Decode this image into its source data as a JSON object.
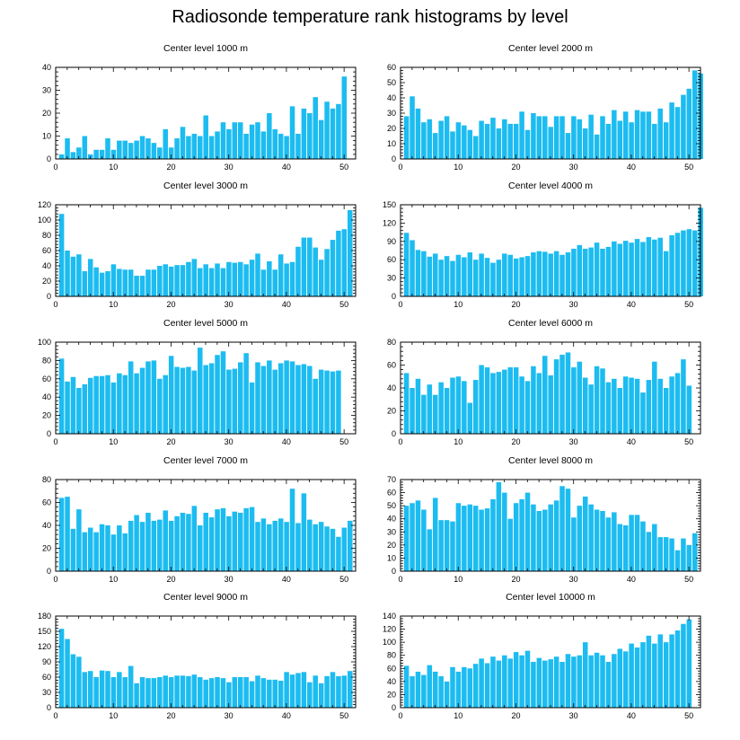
{
  "title": "Radiosonde temperature rank histograms by level",
  "colors": {
    "bar": "#1cbcf0",
    "axis": "#000000",
    "background": "#ffffff"
  },
  "chart_data": [
    {
      "type": "bar",
      "title": "Center level 1000 m",
      "xlim": [
        0,
        52
      ],
      "ylim": [
        0,
        40
      ],
      "xticks": [
        0,
        10,
        20,
        30,
        40,
        50
      ],
      "yticks": [
        0,
        10,
        20,
        30,
        40
      ],
      "values": [
        2,
        9,
        3,
        5,
        10,
        2,
        4,
        4,
        9,
        4,
        8,
        8,
        7,
        8,
        10,
        9,
        7,
        5,
        13,
        5,
        9,
        14,
        10,
        11,
        10,
        19,
        10,
        12,
        16,
        13,
        16,
        16,
        11,
        15,
        16,
        12,
        20,
        13,
        11,
        10,
        23,
        11,
        22,
        20,
        27,
        17,
        25,
        22,
        24,
        36
      ]
    },
    {
      "type": "bar",
      "title": "Center level 2000 m",
      "xlim": [
        0,
        52
      ],
      "ylim": [
        0,
        60
      ],
      "xticks": [
        0,
        10,
        20,
        30,
        40,
        50
      ],
      "yticks": [
        0,
        10,
        20,
        30,
        40,
        50,
        60
      ],
      "values": [
        28,
        41,
        33,
        24,
        26,
        17,
        25,
        28,
        18,
        24,
        22,
        19,
        15,
        25,
        23,
        27,
        20,
        26,
        23,
        23,
        31,
        19,
        30,
        28,
        28,
        21,
        28,
        28,
        17,
        28,
        26,
        20,
        29,
        16,
        28,
        23,
        32,
        25,
        31,
        24,
        32,
        31,
        31,
        23,
        33,
        24,
        37,
        34,
        42,
        46,
        58,
        56
      ]
    },
    {
      "type": "bar",
      "title": "Center level 3000 m",
      "xlim": [
        0,
        52
      ],
      "ylim": [
        0,
        120
      ],
      "xticks": [
        0,
        10,
        20,
        30,
        40,
        50
      ],
      "yticks": [
        0,
        20,
        40,
        60,
        80,
        100,
        120
      ],
      "values": [
        108,
        60,
        52,
        55,
        33,
        49,
        38,
        31,
        33,
        42,
        36,
        35,
        35,
        27,
        27,
        35,
        35,
        40,
        42,
        39,
        41,
        41,
        45,
        49,
        37,
        42,
        37,
        43,
        37,
        45,
        44,
        45,
        42,
        48,
        56,
        35,
        46,
        35,
        55,
        43,
        45,
        65,
        77,
        77,
        64,
        48,
        62,
        74,
        86,
        88,
        113
      ]
    },
    {
      "type": "bar",
      "title": "Center level 4000 m",
      "xlim": [
        0,
        52
      ],
      "ylim": [
        0,
        150
      ],
      "xticks": [
        0,
        10,
        20,
        30,
        40,
        50
      ],
      "yticks": [
        0,
        30,
        60,
        90,
        120,
        150
      ],
      "values": [
        104,
        92,
        76,
        74,
        65,
        70,
        60,
        66,
        58,
        68,
        64,
        72,
        60,
        70,
        63,
        55,
        60,
        70,
        68,
        62,
        64,
        66,
        72,
        74,
        73,
        70,
        74,
        68,
        72,
        78,
        84,
        78,
        80,
        88,
        78,
        81,
        90,
        86,
        91,
        88,
        94,
        89,
        97,
        93,
        96,
        74,
        100,
        104,
        108,
        110,
        108,
        145
      ]
    },
    {
      "type": "bar",
      "title": "Center level 5000 m",
      "xlim": [
        0,
        52
      ],
      "ylim": [
        0,
        100
      ],
      "xticks": [
        0,
        10,
        20,
        30,
        40,
        50
      ],
      "yticks": [
        0,
        20,
        40,
        60,
        80,
        100
      ],
      "values": [
        82,
        57,
        62,
        50,
        54,
        61,
        63,
        63,
        64,
        56,
        66,
        64,
        79,
        66,
        72,
        79,
        80,
        60,
        64,
        85,
        73,
        72,
        73,
        69,
        94,
        75,
        77,
        86,
        90,
        70,
        71,
        78,
        88,
        56,
        78,
        74,
        80,
        70,
        77,
        80,
        79,
        75,
        76,
        74,
        60,
        70,
        69,
        68,
        69
      ]
    },
    {
      "type": "bar",
      "title": "Center level 6000 m",
      "xlim": [
        0,
        52
      ],
      "ylim": [
        0,
        80
      ],
      "xticks": [
        0,
        10,
        20,
        30,
        40,
        50
      ],
      "yticks": [
        0,
        20,
        40,
        60,
        80
      ],
      "values": [
        53,
        40,
        48,
        34,
        43,
        34,
        45,
        40,
        49,
        50,
        46,
        27,
        47,
        60,
        58,
        53,
        54,
        56,
        58,
        58,
        50,
        46,
        59,
        53,
        68,
        51,
        65,
        69,
        71,
        58,
        63,
        49,
        43,
        59,
        57,
        45,
        48,
        40,
        50,
        49,
        48,
        36,
        47,
        63,
        48,
        40,
        50,
        53,
        65,
        42
      ]
    },
    {
      "type": "bar",
      "title": "Center level 7000 m",
      "xlim": [
        0,
        52
      ],
      "ylim": [
        0,
        80
      ],
      "xticks": [
        0,
        10,
        20,
        30,
        40,
        50
      ],
      "yticks": [
        0,
        20,
        40,
        60,
        80
      ],
      "values": [
        64,
        65,
        37,
        54,
        34,
        38,
        34,
        41,
        40,
        32,
        40,
        33,
        44,
        49,
        43,
        51,
        44,
        45,
        53,
        44,
        48,
        51,
        50,
        57,
        40,
        51,
        47,
        54,
        55,
        48,
        52,
        51,
        55,
        56,
        43,
        46,
        41,
        44,
        46,
        43,
        72,
        42,
        68,
        45,
        41,
        43,
        39,
        37,
        30,
        38,
        44
      ]
    },
    {
      "type": "bar",
      "title": "Center level 8000 m",
      "xlim": [
        0,
        52
      ],
      "ylim": [
        0,
        70
      ],
      "xticks": [
        0,
        10,
        20,
        30,
        40,
        50
      ],
      "yticks": [
        0,
        10,
        20,
        30,
        40,
        50,
        60,
        70
      ],
      "values": [
        50,
        52,
        54,
        47,
        32,
        56,
        39,
        39,
        38,
        52,
        50,
        51,
        50,
        47,
        48,
        55,
        68,
        60,
        40,
        52,
        55,
        60,
        51,
        46,
        47,
        51,
        54,
        65,
        63,
        41,
        50,
        57,
        51,
        47,
        46,
        41,
        45,
        36,
        35,
        43,
        43,
        38,
        30,
        36,
        26,
        26,
        25,
        16,
        25,
        20,
        29
      ]
    },
    {
      "type": "bar",
      "title": "Center level 9000 m",
      "xlim": [
        0,
        52
      ],
      "ylim": [
        0,
        180
      ],
      "xticks": [
        0,
        10,
        20,
        30,
        40,
        50
      ],
      "yticks": [
        0,
        30,
        60,
        90,
        120,
        150,
        180
      ],
      "values": [
        155,
        135,
        105,
        100,
        70,
        72,
        60,
        73,
        72,
        60,
        70,
        60,
        82,
        48,
        60,
        58,
        58,
        60,
        63,
        60,
        63,
        63,
        62,
        65,
        60,
        55,
        58,
        60,
        58,
        50,
        60,
        60,
        60,
        52,
        63,
        58,
        55,
        55,
        53,
        70,
        65,
        68,
        70,
        50,
        63,
        48,
        62,
        70,
        62,
        63,
        72
      ]
    },
    {
      "type": "bar",
      "title": "Center level 10000 m",
      "xlim": [
        0,
        52
      ],
      "ylim": [
        0,
        140
      ],
      "xticks": [
        0,
        10,
        20,
        30,
        40,
        50
      ],
      "yticks": [
        0,
        20,
        40,
        60,
        80,
        100,
        120,
        140
      ],
      "values": [
        64,
        48,
        55,
        50,
        65,
        55,
        48,
        40,
        62,
        55,
        62,
        60,
        67,
        75,
        68,
        78,
        72,
        80,
        75,
        85,
        80,
        87,
        70,
        76,
        72,
        74,
        78,
        70,
        82,
        78,
        80,
        100,
        80,
        84,
        80,
        70,
        82,
        90,
        86,
        98,
        92,
        100,
        110,
        98,
        112,
        100,
        112,
        118,
        128,
        135
      ]
    }
  ]
}
